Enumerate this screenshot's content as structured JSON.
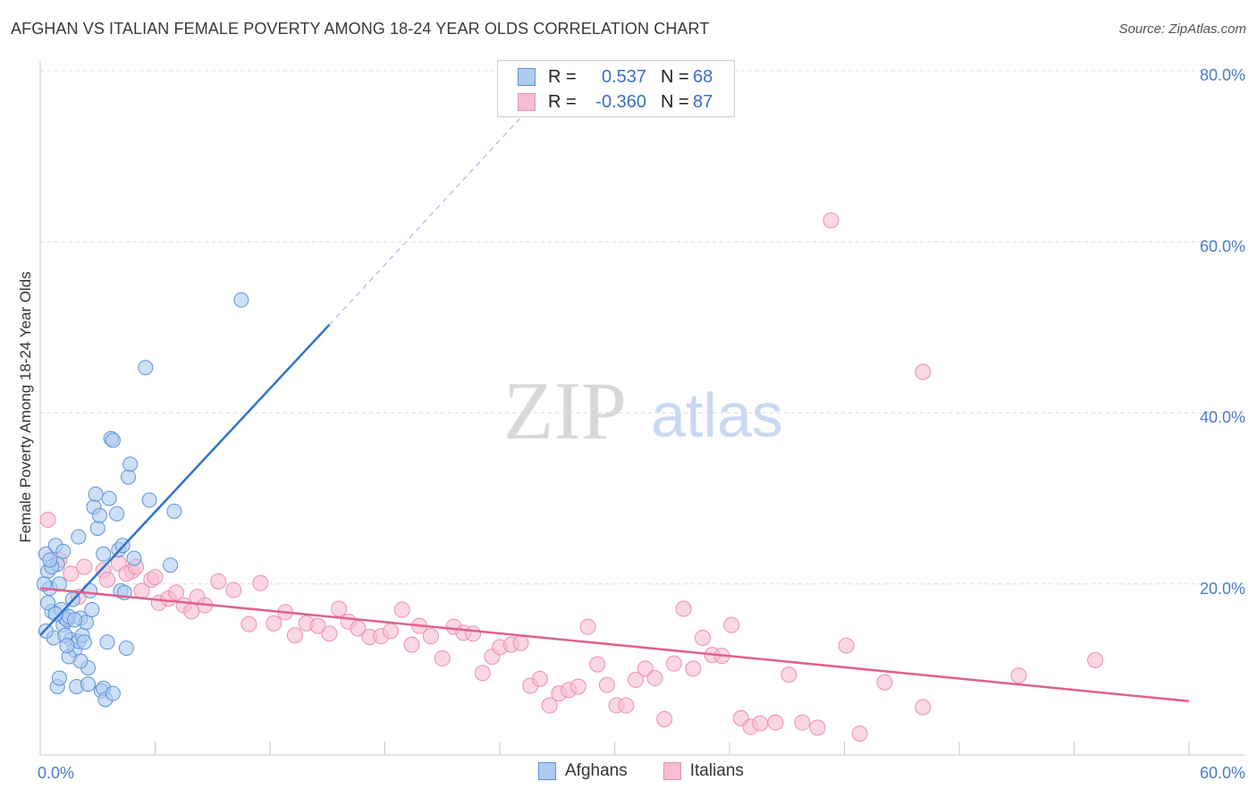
{
  "header": {
    "title": "AFGHAN VS ITALIAN FEMALE POVERTY AMONG 18-24 YEAR OLDS CORRELATION CHART",
    "source": "Source: ZipAtlas.com"
  },
  "watermark": {
    "zip": "ZIP",
    "atlas": "atlas"
  },
  "legend": {
    "rows": [
      {
        "r_label": "R =",
        "r_value": "0.537",
        "n_label": "N =",
        "n_value": "68"
      },
      {
        "r_label": "R =",
        "r_value": "-0.360",
        "n_label": "N =",
        "n_value": "87"
      }
    ]
  },
  "bottom_legend": {
    "afghans": "Afghans",
    "italians": "Italians"
  },
  "colors": {
    "afghans_fill": "#aecbf0",
    "afghans_stroke": "#5e92d8",
    "afghans_line": "#2e74d0",
    "italians_fill": "#f7bdd0",
    "italians_stroke": "#ec8fb0",
    "italians_line": "#e0608e",
    "tick_text": "#4a7cc7",
    "grid": "#dcdcdc"
  },
  "chart_data": {
    "type": "scatter",
    "title": "AFGHAN VS ITALIAN FEMALE POVERTY AMONG 18-24 YEAR OLDS CORRELATION CHART",
    "xlabel": "",
    "ylabel": "Female Poverty Among 18-24 Year Olds",
    "xlim": [
      0,
      60
    ],
    "ylim": [
      0,
      80
    ],
    "x_tick_labels": [
      "0.0%",
      "60.0%"
    ],
    "y_ticks": [
      20,
      40,
      60,
      80
    ],
    "y_tick_labels": [
      "20.0%",
      "40.0%",
      "60.0%",
      "80.0%"
    ],
    "grid": true,
    "series": [
      {
        "name": "Afghans",
        "r": 0.537,
        "n": 68,
        "trend": {
          "x0": 0,
          "y0": 14.0,
          "x1": 15.1,
          "y1": 50.3,
          "dashed_to_x": 25.5,
          "dashed_to_y": 75.5
        },
        "points": [
          [
            0.3,
            23.5
          ],
          [
            0.4,
            21.5
          ],
          [
            0.5,
            19.5
          ],
          [
            0.6,
            16.8
          ],
          [
            0.7,
            13.7
          ],
          [
            0.8,
            24.5
          ],
          [
            0.9,
            22.3
          ],
          [
            1.0,
            20.0
          ],
          [
            1.1,
            17.0
          ],
          [
            1.2,
            15.2
          ],
          [
            1.3,
            16.0
          ],
          [
            1.4,
            15.8
          ],
          [
            1.5,
            16.2
          ],
          [
            1.6,
            13.5
          ],
          [
            1.7,
            18.2
          ],
          [
            1.8,
            12.3
          ],
          [
            1.9,
            8.0
          ],
          [
            2.0,
            13.3
          ],
          [
            2.1,
            16.0
          ],
          [
            2.2,
            14.0
          ],
          [
            2.3,
            13.2
          ],
          [
            2.4,
            15.5
          ],
          [
            2.5,
            10.2
          ],
          [
            2.6,
            19.2
          ],
          [
            2.7,
            17.0
          ],
          [
            2.8,
            29.0
          ],
          [
            2.9,
            30.5
          ],
          [
            3.0,
            26.5
          ],
          [
            3.1,
            28.0
          ],
          [
            3.2,
            7.5
          ],
          [
            3.3,
            7.8
          ],
          [
            3.4,
            6.5
          ],
          [
            3.5,
            13.2
          ],
          [
            3.6,
            30.0
          ],
          [
            3.7,
            37.0
          ],
          [
            3.8,
            36.8
          ],
          [
            4.0,
            28.2
          ],
          [
            4.1,
            24.0
          ],
          [
            4.2,
            19.2
          ],
          [
            4.3,
            24.5
          ],
          [
            4.4,
            19.0
          ],
          [
            4.5,
            12.5
          ],
          [
            4.6,
            32.5
          ],
          [
            4.7,
            34.0
          ],
          [
            4.9,
            23.0
          ],
          [
            5.5,
            45.3
          ],
          [
            5.7,
            29.8
          ],
          [
            6.8,
            22.2
          ],
          [
            7.0,
            28.5
          ],
          [
            10.5,
            53.2
          ],
          [
            0.9,
            8.0
          ],
          [
            1.0,
            9.0
          ],
          [
            0.4,
            17.8
          ],
          [
            0.6,
            22.0
          ],
          [
            1.3,
            14.0
          ],
          [
            2.0,
            25.5
          ],
          [
            2.1,
            11.0
          ],
          [
            0.3,
            14.5
          ],
          [
            0.2,
            20.0
          ],
          [
            3.8,
            7.2
          ],
          [
            1.5,
            11.5
          ],
          [
            2.5,
            8.3
          ],
          [
            1.8,
            15.8
          ],
          [
            0.5,
            22.8
          ],
          [
            1.2,
            23.8
          ],
          [
            0.8,
            16.5
          ],
          [
            1.4,
            12.8
          ],
          [
            3.3,
            23.5
          ]
        ]
      },
      {
        "name": "Italians",
        "r": -0.36,
        "n": 87,
        "trend": {
          "x0": 0,
          "y0": 19.5,
          "x1": 60,
          "y1": 6.3
        },
        "points": [
          [
            0.4,
            27.5
          ],
          [
            1.0,
            22.8
          ],
          [
            1.6,
            21.2
          ],
          [
            2.3,
            22.0
          ],
          [
            3.3,
            21.6
          ],
          [
            4.1,
            22.4
          ],
          [
            4.8,
            21.5
          ],
          [
            5.3,
            19.2
          ],
          [
            5.8,
            20.5
          ],
          [
            6.2,
            17.8
          ],
          [
            6.7,
            18.3
          ],
          [
            7.1,
            19.0
          ],
          [
            7.5,
            17.5
          ],
          [
            7.9,
            16.8
          ],
          [
            8.2,
            18.5
          ],
          [
            8.6,
            17.5
          ],
          [
            9.3,
            20.3
          ],
          [
            10.1,
            19.3
          ],
          [
            10.9,
            15.3
          ],
          [
            11.5,
            20.1
          ],
          [
            12.2,
            15.4
          ],
          [
            12.8,
            16.7
          ],
          [
            13.3,
            14.0
          ],
          [
            13.9,
            15.4
          ],
          [
            14.5,
            15.1
          ],
          [
            15.1,
            14.2
          ],
          [
            15.6,
            17.1
          ],
          [
            16.1,
            15.6
          ],
          [
            16.6,
            14.8
          ],
          [
            17.2,
            13.8
          ],
          [
            17.8,
            13.9
          ],
          [
            18.3,
            14.5
          ],
          [
            18.9,
            17.0
          ],
          [
            19.4,
            12.9
          ],
          [
            19.8,
            15.1
          ],
          [
            20.4,
            13.9
          ],
          [
            21.0,
            11.3
          ],
          [
            21.6,
            15.0
          ],
          [
            22.1,
            14.3
          ],
          [
            22.6,
            14.2
          ],
          [
            23.1,
            9.6
          ],
          [
            23.6,
            11.5
          ],
          [
            24.0,
            12.6
          ],
          [
            24.6,
            12.9
          ],
          [
            25.1,
            13.1
          ],
          [
            25.6,
            8.1
          ],
          [
            26.1,
            8.9
          ],
          [
            26.6,
            5.8
          ],
          [
            27.1,
            7.2
          ],
          [
            27.6,
            7.6
          ],
          [
            28.1,
            8.0
          ],
          [
            28.6,
            15.0
          ],
          [
            29.1,
            10.6
          ],
          [
            29.6,
            8.2
          ],
          [
            30.1,
            5.8
          ],
          [
            30.6,
            5.8
          ],
          [
            31.1,
            8.8
          ],
          [
            31.6,
            10.1
          ],
          [
            32.1,
            9.0
          ],
          [
            32.6,
            4.2
          ],
          [
            33.1,
            10.7
          ],
          [
            33.6,
            17.1
          ],
          [
            34.1,
            10.1
          ],
          [
            34.6,
            13.7
          ],
          [
            35.1,
            11.7
          ],
          [
            35.6,
            11.6
          ],
          [
            36.1,
            15.2
          ],
          [
            36.6,
            4.3
          ],
          [
            37.1,
            3.3
          ],
          [
            37.6,
            3.7
          ],
          [
            38.4,
            3.8
          ],
          [
            39.1,
            9.4
          ],
          [
            39.8,
            3.8
          ],
          [
            40.6,
            3.2
          ],
          [
            41.3,
            62.5
          ],
          [
            42.1,
            12.8
          ],
          [
            42.8,
            2.5
          ],
          [
            44.1,
            8.5
          ],
          [
            46.1,
            44.8
          ],
          [
            46.1,
            5.6
          ],
          [
            51.1,
            9.3
          ],
          [
            55.1,
            11.1
          ],
          [
            2.0,
            18.5
          ],
          [
            3.5,
            20.5
          ],
          [
            4.5,
            21.2
          ],
          [
            5.0,
            22.0
          ],
          [
            6.0,
            20.8
          ]
        ]
      }
    ]
  }
}
